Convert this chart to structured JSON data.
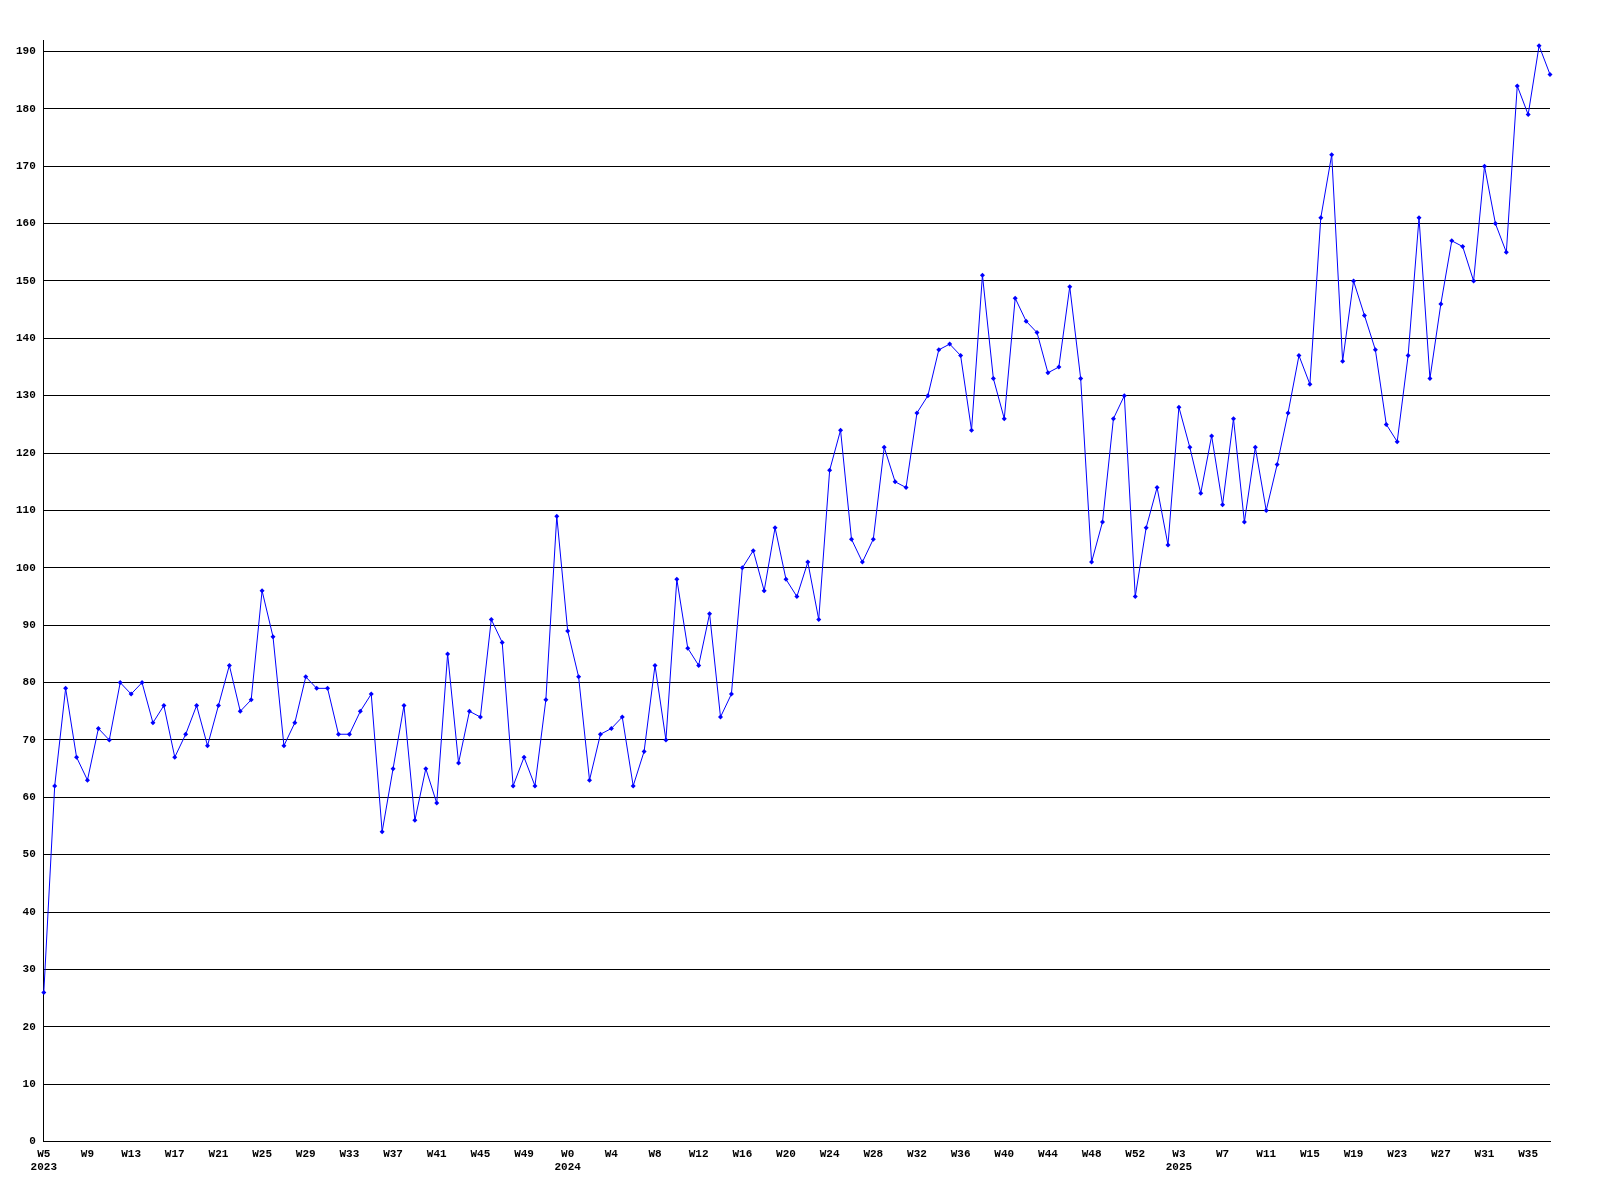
{
  "chart_data": {
    "type": "line",
    "categories": [
      "W5\n2023",
      null,
      null,
      null,
      "W9",
      null,
      null,
      null,
      "W13",
      null,
      null,
      null,
      "W17",
      null,
      null,
      null,
      "W21",
      null,
      null,
      null,
      "W25",
      null,
      null,
      null,
      "W29",
      null,
      null,
      null,
      "W33",
      null,
      null,
      null,
      "W37",
      null,
      null,
      null,
      "W41",
      null,
      null,
      null,
      "W45",
      null,
      null,
      null,
      "W49",
      null,
      null,
      null,
      "W0\n2024",
      null,
      null,
      null,
      "W4",
      null,
      null,
      null,
      "W8",
      null,
      null,
      null,
      "W12",
      null,
      null,
      null,
      "W16",
      null,
      null,
      null,
      "W20",
      null,
      null,
      null,
      "W24",
      null,
      null,
      null,
      "W28",
      null,
      null,
      null,
      "W32",
      null,
      null,
      null,
      "W36",
      null,
      null,
      null,
      "W40",
      null,
      null,
      null,
      "W44",
      null,
      null,
      null,
      "W48",
      null,
      null,
      null,
      "W52",
      null,
      null,
      null,
      "W3\n2025",
      null,
      null,
      null,
      "W7",
      null,
      null,
      null,
      "W11",
      null,
      null,
      null,
      "W15",
      null,
      null,
      null,
      "W19",
      null,
      null,
      null,
      "W23",
      null,
      null,
      null,
      "W27",
      null,
      null,
      null,
      "W31",
      null,
      null,
      null,
      "W35",
      null,
      null
    ],
    "series": [
      {
        "color": "#0000ff",
        "values": [
          26,
          62,
          79,
          67,
          63,
          72,
          70,
          80,
          78,
          80,
          73,
          76,
          67,
          71,
          76,
          69,
          76,
          83,
          75,
          77,
          96,
          88,
          69,
          73,
          81,
          79,
          79,
          71,
          71,
          75,
          78,
          54,
          65,
          76,
          56,
          65,
          59,
          85,
          66,
          75,
          74,
          91,
          87,
          62,
          67,
          62,
          77,
          109,
          89,
          81,
          63,
          71,
          72,
          74,
          62,
          68,
          83,
          70,
          98,
          86,
          83,
          92,
          74,
          78,
          100,
          103,
          96,
          107,
          98,
          95,
          101,
          91,
          117,
          124,
          105,
          101,
          105,
          121,
          115,
          114,
          127,
          130,
          138,
          139,
          137,
          124,
          151,
          133,
          126,
          147,
          143,
          141,
          134,
          135,
          149,
          133,
          101,
          108,
          126,
          130,
          95,
          107,
          114,
          104,
          128,
          121,
          113,
          123,
          111,
          126,
          108,
          121,
          110,
          118,
          127,
          137,
          132,
          161,
          172,
          136,
          150,
          144,
          138,
          125,
          122,
          137,
          161,
          133,
          146,
          157,
          156,
          150,
          170,
          160,
          155,
          184,
          179,
          191,
          186
        ]
      }
    ],
    "ylim": [
      0,
      192
    ],
    "yticks": [
      0,
      10,
      20,
      30,
      40,
      50,
      60,
      70,
      80,
      90,
      100,
      110,
      120,
      130,
      140,
      150,
      160,
      170,
      180,
      190
    ],
    "grid": "y",
    "legend": false,
    "marker": "diamond",
    "line_style": "solid"
  }
}
